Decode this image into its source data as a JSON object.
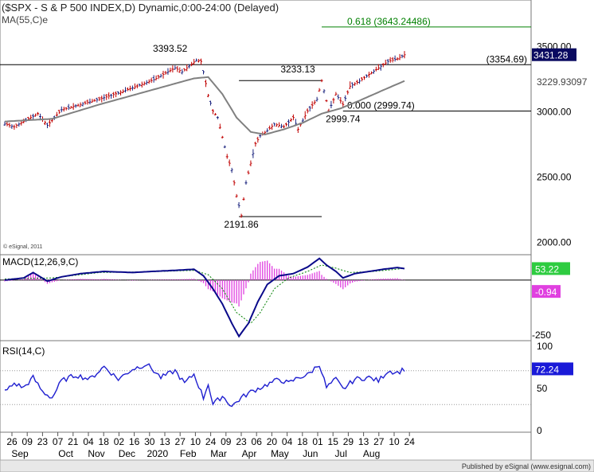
{
  "header": {
    "title": "($SPX - S & P 500 INDEX,D) Dynamic,0:00-24:00 (Delayed)",
    "ma_label": "MA(55,C)e",
    "watermark": "© eSignal, 2011",
    "footer": "Published by eSignal (www.esignal.com)"
  },
  "colors": {
    "price_bar": "#c00000",
    "price_bar_alt": "#1a237e",
    "ma_line": "#808080",
    "fib_line": "#008000",
    "macd_line": "#0a0a8a",
    "signal_line": "#008000",
    "histogram": "#e040e0",
    "rsi_line": "#1f1fd0",
    "price_tag": "#0a0a60",
    "macd_tag": "#2ecc40",
    "hist_tag": "#e040e0",
    "rsi_tag": "#1a1ad8"
  },
  "chart_data": [
    {
      "type": "candlestick",
      "panel": "price",
      "title": "($SPX - S & P 500 INDEX,D) Dynamic,0:00-24:00 (Delayed)",
      "ylim": [
        1900,
        3850
      ],
      "yticks": [
        "3500.00",
        "3000.00",
        "2500.00",
        "2000.00"
      ],
      "ytick_values": [
        3500,
        3000,
        2500,
        2000
      ],
      "last_price": "3431.28",
      "ma_value": "3229.93097",
      "ma_label": "MA(55,C)e",
      "anchors": [
        {
          "x": 0,
          "y": 2900
        },
        {
          "x": 4,
          "y": 2880
        },
        {
          "x": 14,
          "y": 2980
        },
        {
          "x": 18,
          "y": 2890
        },
        {
          "x": 24,
          "y": 3010
        },
        {
          "x": 40,
          "y": 3090
        },
        {
          "x": 50,
          "y": 3150
        },
        {
          "x": 63,
          "y": 3240
        },
        {
          "x": 72,
          "y": 3330
        },
        {
          "x": 75,
          "y": 3300
        },
        {
          "x": 81,
          "y": 3390
        },
        {
          "x": 83,
          "y": 3380
        },
        {
          "x": 84,
          "y": 3300
        },
        {
          "x": 86,
          "y": 3120
        },
        {
          "x": 88,
          "y": 3000
        },
        {
          "x": 90,
          "y": 2950
        },
        {
          "x": 92,
          "y": 2800
        },
        {
          "x": 94,
          "y": 2650
        },
        {
          "x": 96,
          "y": 2550
        },
        {
          "x": 98,
          "y": 2350
        },
        {
          "x": 100,
          "y": 2200
        },
        {
          "x": 102,
          "y": 2450
        },
        {
          "x": 104,
          "y": 2600
        },
        {
          "x": 106,
          "y": 2750
        },
        {
          "x": 108,
          "y": 2810
        },
        {
          "x": 111,
          "y": 2850
        },
        {
          "x": 114,
          "y": 2900
        },
        {
          "x": 118,
          "y": 2880
        },
        {
          "x": 122,
          "y": 2950
        },
        {
          "x": 124,
          "y": 2860
        },
        {
          "x": 128,
          "y": 3000
        },
        {
          "x": 132,
          "y": 3090
        },
        {
          "x": 134,
          "y": 3233
        },
        {
          "x": 137,
          "y": 3000
        },
        {
          "x": 140,
          "y": 3130
        },
        {
          "x": 143,
          "y": 3050
        },
        {
          "x": 146,
          "y": 3190
        },
        {
          "x": 150,
          "y": 3230
        },
        {
          "x": 154,
          "y": 3280
        },
        {
          "x": 158,
          "y": 3330
        },
        {
          "x": 162,
          "y": 3380
        },
        {
          "x": 166,
          "y": 3400
        },
        {
          "x": 169,
          "y": 3431
        }
      ],
      "ma_anchors": [
        {
          "x": 0,
          "y": 2920
        },
        {
          "x": 20,
          "y": 2940
        },
        {
          "x": 40,
          "y": 3050
        },
        {
          "x": 60,
          "y": 3150
        },
        {
          "x": 80,
          "y": 3250
        },
        {
          "x": 86,
          "y": 3260
        },
        {
          "x": 92,
          "y": 3130
        },
        {
          "x": 98,
          "y": 2950
        },
        {
          "x": 104,
          "y": 2840
        },
        {
          "x": 110,
          "y": 2820
        },
        {
          "x": 118,
          "y": 2860
        },
        {
          "x": 126,
          "y": 2910
        },
        {
          "x": 134,
          "y": 2980
        },
        {
          "x": 142,
          "y": 3020
        },
        {
          "x": 150,
          "y": 3080
        },
        {
          "x": 160,
          "y": 3160
        },
        {
          "x": 169,
          "y": 3230
        }
      ],
      "bar_count": 170,
      "annotations": [
        {
          "text": "3393.52",
          "x": 80,
          "y": 3393.52,
          "kind": "peak"
        },
        {
          "text": "3233.13",
          "x": 134,
          "y": 3233.13,
          "kind": "peak"
        },
        {
          "text": "2191.86",
          "x": 100,
          "y": 2191.86,
          "kind": "trough"
        },
        {
          "text": "2999.74",
          "x": 143,
          "y": 2999.74,
          "kind": "trough"
        }
      ],
      "levels": [
        {
          "name": "(3354.69)",
          "value": 3354.69,
          "x_start": 0,
          "color": "#000000"
        },
        {
          "name": "0.000 (2999.74)",
          "value": 2999.74,
          "x_start": 143,
          "color": "#000000"
        },
        {
          "name": "0.618 (3643.24486)",
          "value": 3643.24486,
          "x_start": 134,
          "color": "#008000"
        }
      ],
      "horizontal_segments": [
        {
          "value": 3233.13,
          "x_start": 99,
          "x_end": 134
        },
        {
          "value": 2191.86,
          "x_start": 99,
          "x_end": 134
        }
      ]
    },
    {
      "type": "line",
      "panel": "macd",
      "title": "MACD(12,26,9,C)",
      "ylim": [
        -280,
        110
      ],
      "yticks": [
        "-250"
      ],
      "ytick_values": [
        -250
      ],
      "macd_value": "53.22",
      "hist_value": "-0.94",
      "macd_anchors": [
        {
          "x": 0,
          "y": 0
        },
        {
          "x": 8,
          "y": 10
        },
        {
          "x": 12,
          "y": 35
        },
        {
          "x": 18,
          "y": -5
        },
        {
          "x": 24,
          "y": 15
        },
        {
          "x": 32,
          "y": 30
        },
        {
          "x": 42,
          "y": 40
        },
        {
          "x": 54,
          "y": 35
        },
        {
          "x": 62,
          "y": 40
        },
        {
          "x": 72,
          "y": 45
        },
        {
          "x": 80,
          "y": 50
        },
        {
          "x": 84,
          "y": 20
        },
        {
          "x": 88,
          "y": -40
        },
        {
          "x": 92,
          "y": -110
        },
        {
          "x": 96,
          "y": -200
        },
        {
          "x": 99,
          "y": -260
        },
        {
          "x": 103,
          "y": -200
        },
        {
          "x": 107,
          "y": -100
        },
        {
          "x": 111,
          "y": -20
        },
        {
          "x": 116,
          "y": 20
        },
        {
          "x": 122,
          "y": 30
        },
        {
          "x": 128,
          "y": 60
        },
        {
          "x": 133,
          "y": 100
        },
        {
          "x": 136,
          "y": 70
        },
        {
          "x": 140,
          "y": 40
        },
        {
          "x": 143,
          "y": 10
        },
        {
          "x": 148,
          "y": 30
        },
        {
          "x": 154,
          "y": 40
        },
        {
          "x": 160,
          "y": 50
        },
        {
          "x": 166,
          "y": 58
        },
        {
          "x": 169,
          "y": 53
        }
      ],
      "signal_anchors": [
        {
          "x": 0,
          "y": 5
        },
        {
          "x": 20,
          "y": 10
        },
        {
          "x": 40,
          "y": 35
        },
        {
          "x": 60,
          "y": 38
        },
        {
          "x": 80,
          "y": 45
        },
        {
          "x": 86,
          "y": 25
        },
        {
          "x": 92,
          "y": -40
        },
        {
          "x": 98,
          "y": -150
        },
        {
          "x": 104,
          "y": -200
        },
        {
          "x": 108,
          "y": -150
        },
        {
          "x": 114,
          "y": -40
        },
        {
          "x": 120,
          "y": 10
        },
        {
          "x": 128,
          "y": 40
        },
        {
          "x": 134,
          "y": 70
        },
        {
          "x": 140,
          "y": 55
        },
        {
          "x": 146,
          "y": 35
        },
        {
          "x": 156,
          "y": 40
        },
        {
          "x": 169,
          "y": 54
        }
      ]
    },
    {
      "type": "line",
      "panel": "rsi",
      "title": "RSI(14,C)",
      "ylim": [
        0,
        100
      ],
      "yticks": [
        "100",
        "50",
        "0"
      ],
      "ytick_values": [
        100,
        50,
        0
      ],
      "rsi_value": "72.24",
      "levels": [
        70,
        30
      ],
      "anchors": [
        {
          "x": 0,
          "y": 45
        },
        {
          "x": 4,
          "y": 55
        },
        {
          "x": 8,
          "y": 50
        },
        {
          "x": 12,
          "y": 62
        },
        {
          "x": 16,
          "y": 45
        },
        {
          "x": 20,
          "y": 38
        },
        {
          "x": 24,
          "y": 58
        },
        {
          "x": 30,
          "y": 65
        },
        {
          "x": 36,
          "y": 60
        },
        {
          "x": 42,
          "y": 75
        },
        {
          "x": 48,
          "y": 60
        },
        {
          "x": 54,
          "y": 72
        },
        {
          "x": 60,
          "y": 78
        },
        {
          "x": 66,
          "y": 62
        },
        {
          "x": 72,
          "y": 70
        },
        {
          "x": 76,
          "y": 55
        },
        {
          "x": 80,
          "y": 66
        },
        {
          "x": 84,
          "y": 38
        },
        {
          "x": 86,
          "y": 55
        },
        {
          "x": 88,
          "y": 30
        },
        {
          "x": 92,
          "y": 40
        },
        {
          "x": 96,
          "y": 28
        },
        {
          "x": 100,
          "y": 38
        },
        {
          "x": 104,
          "y": 45
        },
        {
          "x": 108,
          "y": 50
        },
        {
          "x": 112,
          "y": 55
        },
        {
          "x": 116,
          "y": 60
        },
        {
          "x": 120,
          "y": 55
        },
        {
          "x": 124,
          "y": 62
        },
        {
          "x": 128,
          "y": 65
        },
        {
          "x": 133,
          "y": 78
        },
        {
          "x": 136,
          "y": 50
        },
        {
          "x": 140,
          "y": 60
        },
        {
          "x": 143,
          "y": 48
        },
        {
          "x": 148,
          "y": 60
        },
        {
          "x": 154,
          "y": 62
        },
        {
          "x": 158,
          "y": 58
        },
        {
          "x": 162,
          "y": 70
        },
        {
          "x": 166,
          "y": 68
        },
        {
          "x": 169,
          "y": 72
        }
      ]
    }
  ],
  "x_axis": {
    "days": [
      "26",
      "09",
      "23",
      "07",
      "21",
      "04",
      "18",
      "02",
      "16",
      "30",
      "13",
      "27",
      "10",
      "24",
      "09",
      "23",
      "06",
      "20",
      "04",
      "18",
      "01",
      "15",
      "29",
      "13",
      "27",
      "10",
      "24"
    ],
    "months": [
      "Sep",
      "Oct",
      "Nov",
      "Dec",
      "2020",
      "Feb",
      "Mar",
      "Apr",
      "May",
      "Jun",
      "Jul",
      "Aug"
    ],
    "day_bars": [
      0,
      10,
      20,
      30,
      40,
      50,
      60,
      70,
      80,
      90,
      100,
      110,
      120,
      130,
      140,
      150,
      160,
      170,
      180,
      190,
      200,
      210,
      220,
      230,
      240,
      250,
      260
    ],
    "month_day_index": [
      0,
      3,
      5,
      7,
      9,
      11,
      13,
      15,
      17,
      19,
      21,
      23
    ]
  }
}
